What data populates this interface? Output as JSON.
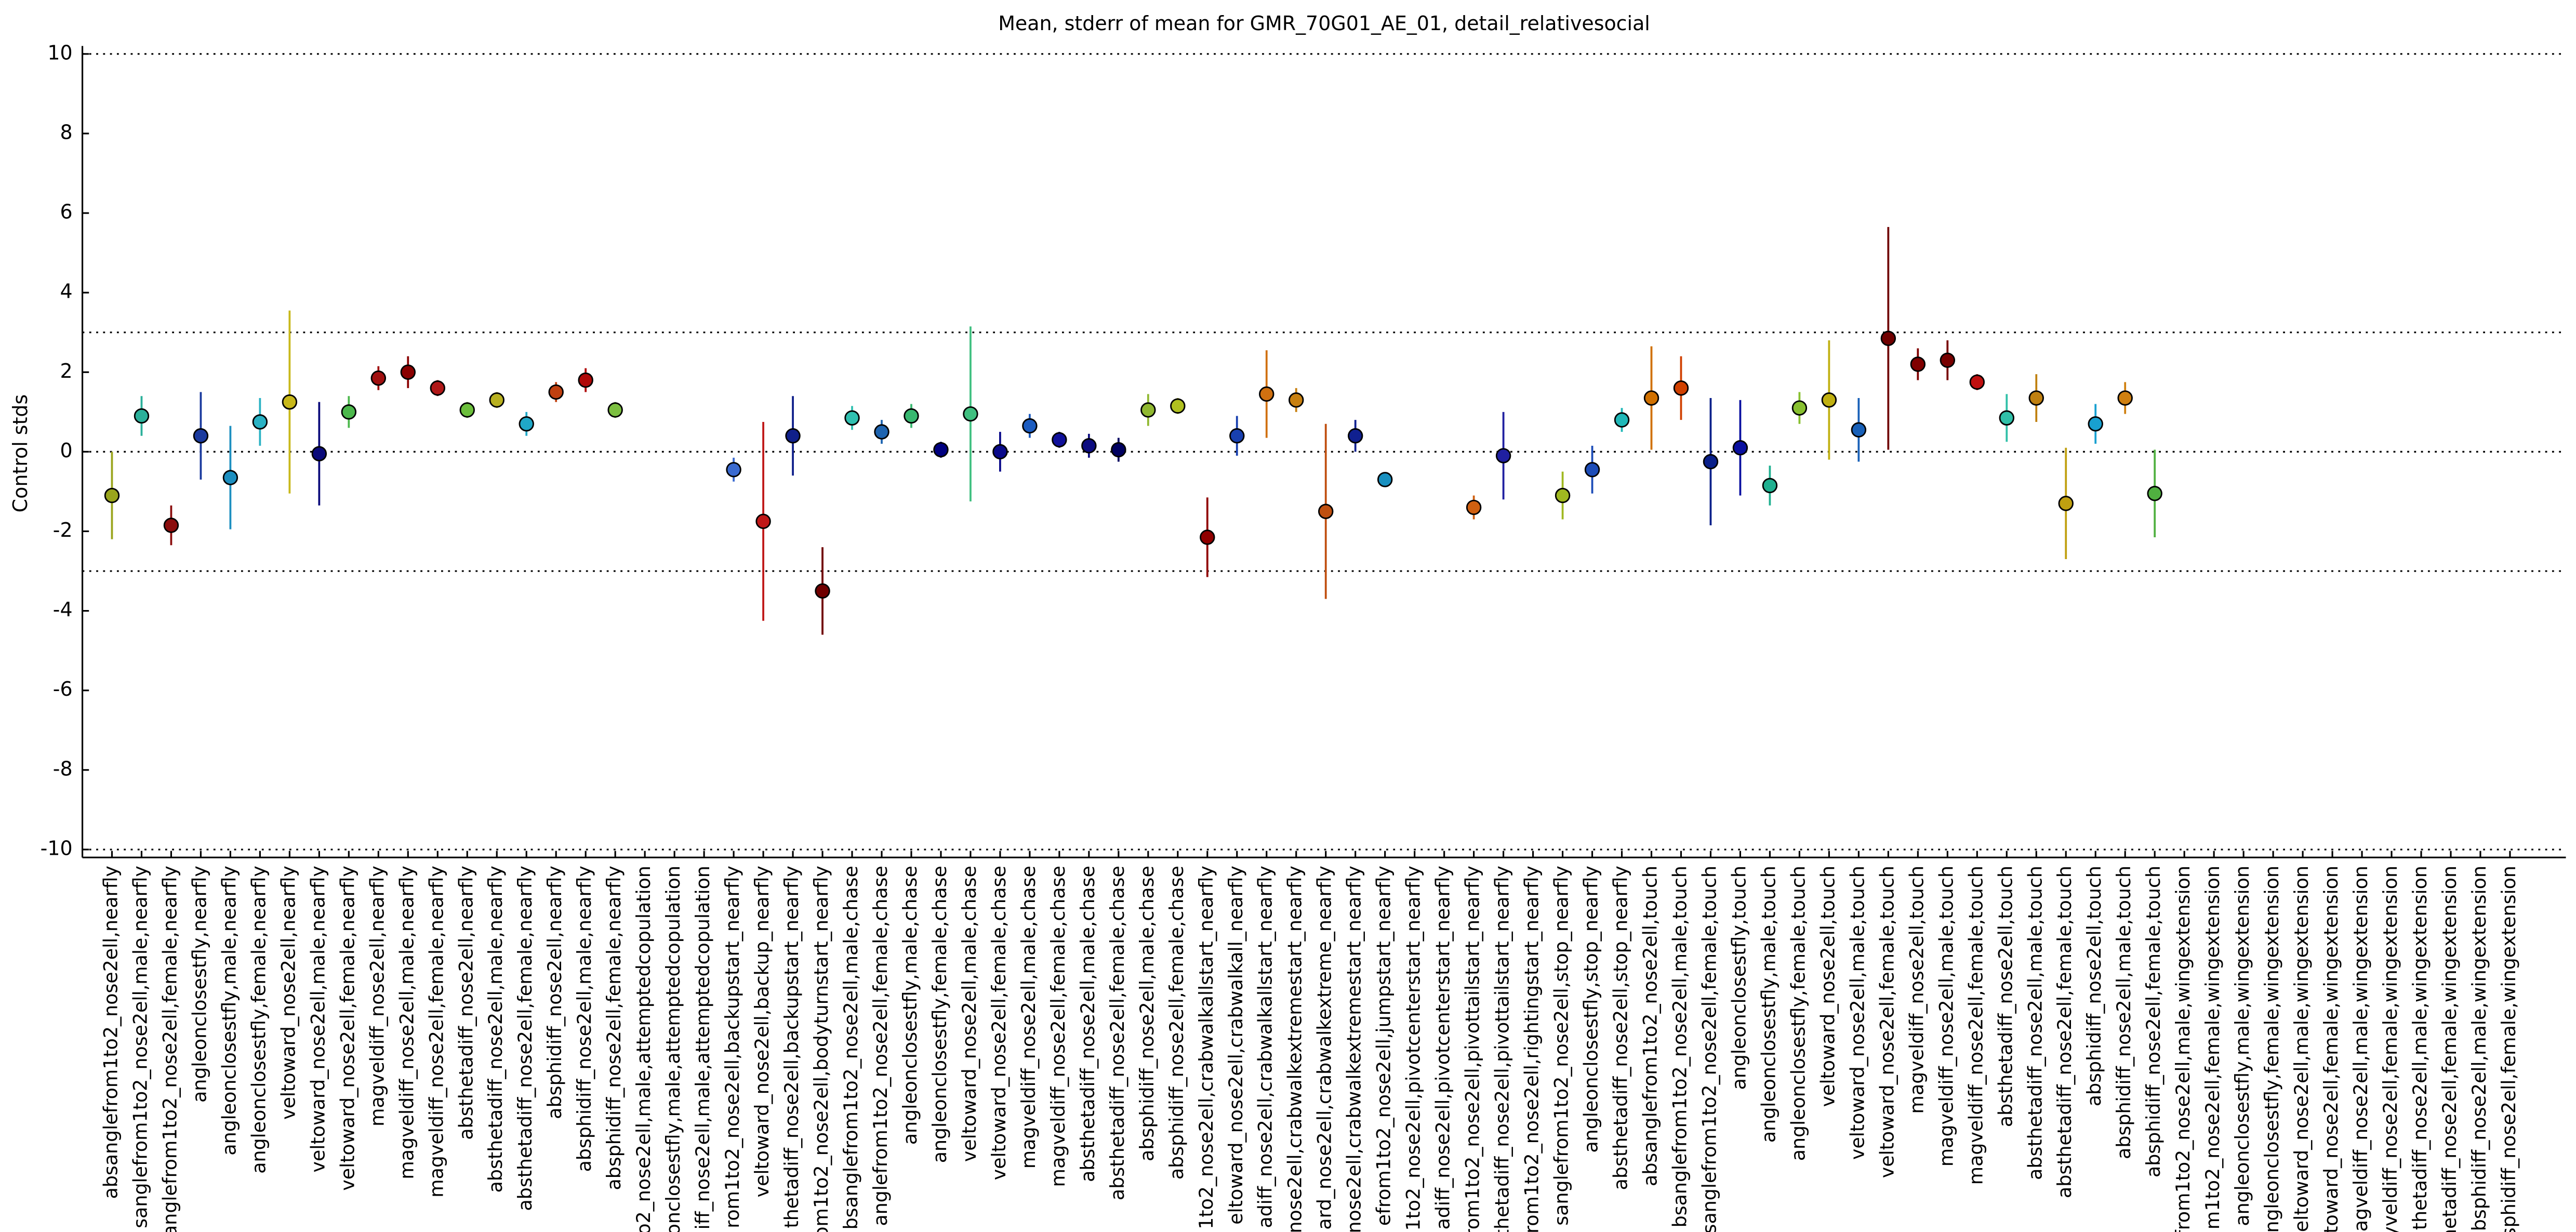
{
  "chart_data": {
    "type": "errorbar",
    "title": "Mean, stderr of mean for GMR_70G01_AE_01, detail_relativesocial",
    "ylabel": "Control stds",
    "ylim": [
      -10.2,
      10.2
    ],
    "yticks": [
      -10,
      -8,
      -6,
      -4,
      -2,
      0,
      2,
      4,
      6,
      8,
      10
    ],
    "hlines": [
      -10,
      -3,
      0,
      3,
      10
    ],
    "categories": [
      "absanglefrom1to2_nose2ell,nearfly",
      "sanglefrom1to2_nose2ell,male,nearfly",
      "anglefrom1to2_nose2ell,female,nearfly",
      "angleonclosestfly,nearfly",
      "angleonclosestfly,male,nearfly",
      "angleonclosestfly,female,nearfly",
      "veltoward_nose2ell,nearfly",
      "veltoward_nose2ell,male,nearfly",
      "veltoward_nose2ell,female,nearfly",
      "magveldiff_nose2ell,nearfly",
      "magveldiff_nose2ell,male,nearfly",
      "magveldiff_nose2ell,female,nearfly",
      "absthetadiff_nose2ell,nearfly",
      "absthetadiff_nose2ell,male,nearfly",
      "absthetadiff_nose2ell,female,nearfly",
      "absphidiff_nose2ell,nearfly",
      "absphidiff_nose2ell,male,nearfly",
      "absphidiff_nose2ell,female,nearfly",
      "o2_nose2ell,male,attemptedcopulation",
      "onclosestfly,male,attemptedcopulation",
      "iff_nose2ell,male,attemptedcopulation",
      "rom1to2_nose2ell,backupstart_nearfly",
      "veltoward_nose2ell,backup_nearfly",
      "thetadiff_nose2ell,backupstart_nearfly",
      "rom1to2_nose2ell,bodyturnstart_nearfly",
      "bsanglefrom1to2_nose2ell,male,chase",
      "anglefrom1to2_nose2ell,female,chase",
      "angleonclosestfly,male,chase",
      "angleonclosestfly,female,chase",
      "veltoward_nose2ell,male,chase",
      "veltoward_nose2ell,female,chase",
      "magveldiff_nose2ell,male,chase",
      "magveldiff_nose2ell,female,chase",
      "absthetadiff_nose2ell,male,chase",
      "absthetadiff_nose2ell,female,chase",
      "absphidiff_nose2ell,male,chase",
      "absphidiff_nose2ell,female,chase",
      "1to2_nose2ell,crabwalkallstart_nearfly",
      "eltoward_nose2ell,crabwalkall_nearfly",
      "adiff_nose2ell,crabwalkallstart_nearfly",
      "nose2ell,crabwalkextremestart_nearfly",
      "ard_nose2ell,crabwalkextreme_nearfly",
      "ard_nose2ell,crabwalkextremestart_nearfly",
      "efrom1to2_nose2ell,jumpstart_nearfly",
      "1to2_nose2ell,pivotcenterstart_nearfly",
      "adiff_nose2ell,pivotcenterstart_nearfly",
      "from1to2_nose2ell,pivottailstart_nearfly",
      "thetadiff_nose2ell,pivottailstart_nearfly",
      "rom1to2_nose2ell,rightingstart_nearfly",
      "sanglefrom1to2_nose2ell,stop_nearfly",
      "angleonclosestfly,stop_nearfly",
      "absthetadiff_nose2ell,stop_nearfly",
      "absanglefrom1to2_nose2ell,touch",
      "bsanglefrom1to2_nose2ell,male,touch",
      "sanglefrom1to2_nose2ell,female,touch",
      "angleonclosestfly,touch",
      "angleonclosestfly,male,touch",
      "angleonclosestfly,female,touch",
      "veltoward_nose2ell,touch",
      "veltoward_nose2ell,male,touch",
      "veltoward_nose2ell,female,touch",
      "magveldiff_nose2ell,touch",
      "magveldiff_nose2ell,male,touch",
      "magveldiff_nose2ell,female,touch",
      "absthetadiff_nose2ell,touch",
      "absthetadiff_nose2ell,male,touch",
      "absthetadiff_nose2ell,female,touch",
      "absphidiff_nose2ell,touch",
      "absphidiff_nose2ell,male,touch",
      "absphidiff_nose2ell,female,touch",
      "from1to2_nose2ell,male,wingextension",
      "m1to2_nose2ell,female,wingextension",
      "angleonclosestfly,male,wingextension",
      "angleonclosestfly,female,wingextension",
      "veltoward_nose2ell,male,wingextension",
      "toward_nose2ell,female,wingextension",
      "agveldiff_nose2ell,male,wingextension",
      "yveldiff_nose2ell,female,wingextension",
      "thetadiff_nose2ell,male,wingextension",
      "hetadiff_nose2ell,female,wingextension",
      "absphidiff_nose2ell,male,wingextension",
      "bsphidiff_nose2ell,female,wingextension"
    ],
    "values": [
      -1.1,
      0.9,
      -1.85,
      0.4,
      -0.65,
      0.75,
      1.25,
      -0.05,
      1.0,
      1.85,
      2.0,
      1.6,
      1.05,
      1.3,
      0.7,
      1.5,
      1.8,
      1.05,
      null,
      null,
      null,
      -0.45,
      -1.75,
      0.4,
      -3.5,
      0.85,
      0.5,
      0.9,
      0.05,
      0.95,
      0.0,
      0.65,
      0.3,
      0.15,
      0.05,
      1.05,
      1.15,
      -2.15,
      0.4,
      1.45,
      1.3,
      -1.5,
      0.4,
      -0.7,
      null,
      null,
      -1.4,
      -0.1,
      null,
      -1.1,
      -0.45,
      0.8,
      1.35,
      1.6,
      -0.25,
      0.1,
      -0.85,
      1.1,
      1.3,
      0.55,
      2.85,
      2.2,
      2.3,
      1.75,
      0.85,
      1.35,
      -1.3,
      0.7,
      1.35,
      -1.05,
      null,
      null,
      null,
      null,
      null,
      null,
      null,
      null,
      null,
      null,
      null,
      null
    ],
    "errors": [
      1.1,
      0.5,
      0.5,
      1.1,
      1.3,
      0.6,
      2.3,
      1.3,
      0.4,
      0.3,
      0.4,
      0.2,
      0.2,
      0.2,
      0.3,
      0.25,
      0.3,
      0.2,
      null,
      null,
      null,
      0.3,
      2.5,
      1.0,
      1.1,
      0.3,
      0.3,
      0.3,
      0.2,
      2.2,
      0.5,
      0.3,
      0.2,
      0.3,
      0.3,
      0.4,
      0.2,
      1.0,
      0.5,
      1.1,
      0.3,
      2.2,
      0.4,
      0.1,
      null,
      null,
      0.3,
      1.1,
      null,
      0.6,
      0.6,
      0.3,
      1.3,
      0.8,
      1.6,
      1.2,
      0.5,
      0.4,
      1.5,
      0.8,
      2.8,
      0.4,
      0.5,
      0.2,
      0.6,
      0.6,
      1.4,
      0.5,
      0.4,
      1.1,
      null,
      null,
      null,
      null,
      null,
      null,
      null,
      null,
      null,
      null,
      null,
      null
    ],
    "colors": [
      "#9aa51d",
      "#2bb09a",
      "#8b0d0d",
      "#1a3a9e",
      "#1d8fc0",
      "#2ab2c4",
      "#c8b81a",
      "#0a0a7a",
      "#4cb84c",
      "#a01010",
      "#8a0000",
      "#b01818",
      "#6cbf3c",
      "#b8b020",
      "#20a8c8",
      "#c04010",
      "#b00808",
      "#7cc040",
      "#a0a0a0",
      "#a0a0a0",
      "#a0a0a0",
      "#3a6ad0",
      "#c01818",
      "#10208a",
      "#700000",
      "#30c0b0",
      "#1e64b0",
      "#38b870",
      "#000080",
      "#40c080",
      "#0a0a8a",
      "#1c5cc0",
      "#10109a",
      "#0c0c80",
      "#000060",
      "#90b830",
      "#b0c020",
      "#900000",
      "#1840b0",
      "#d07010",
      "#c88010",
      "#c05010",
      "#102090",
      "#1890c0",
      "#a0a0a0",
      "#a0a0a0",
      "#d06010",
      "#2020a0",
      "#a0a0a0",
      "#a0b820",
      "#1c4cb8",
      "#20b8b8",
      "#d07000",
      "#d04000",
      "#0a208a",
      "#0a10a0",
      "#20b090",
      "#88c030",
      "#c0b010",
      "#1860b8",
      "#700000",
      "#800000",
      "#780000",
      "#c01010",
      "#30c0a8",
      "#c08010",
      "#c0a010",
      "#18a0d0",
      "#d08010",
      "#50b040",
      "#a0a0a0",
      "#a0a0a0",
      "#a0a0a0",
      "#a0a0a0",
      "#a0a0a0",
      "#a0a0a0",
      "#a0a0a0",
      "#a0a0a0",
      "#a0a0a0",
      "#a0a0a0",
      "#a0a0a0",
      "#a0a0a0"
    ]
  }
}
